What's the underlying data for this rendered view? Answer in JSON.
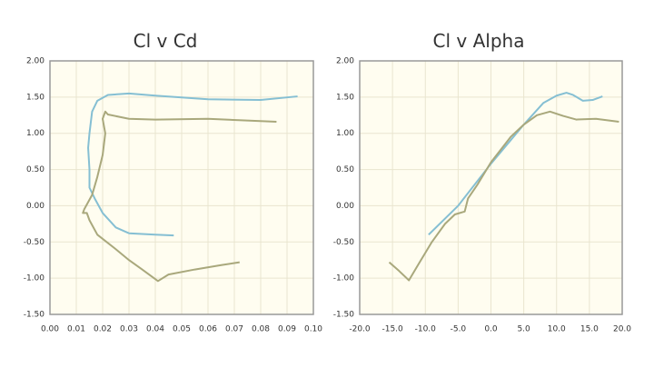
{
  "chart_data": [
    {
      "type": "line",
      "title": "Cl v Cd",
      "grid": true,
      "xlim": [
        0,
        0.1
      ],
      "ylim": [
        -1.5,
        2
      ],
      "xticks": [
        {
          "value": 0,
          "label": "0.00"
        },
        {
          "value": 0.01,
          "label": "0.01"
        },
        {
          "value": 0.02,
          "label": "0.02"
        },
        {
          "value": 0.03,
          "label": "0.03"
        },
        {
          "value": 0.04,
          "label": "0.04"
        },
        {
          "value": 0.05,
          "label": "0.05"
        },
        {
          "value": 0.06,
          "label": "0.06"
        },
        {
          "value": 0.07,
          "label": "0.07"
        },
        {
          "value": 0.08,
          "label": "0.08"
        },
        {
          "value": 0.09,
          "label": "0.09"
        },
        {
          "value": 0.1,
          "label": "0.10"
        }
      ],
      "yticks": [
        {
          "value": -1.5,
          "label": "-1.50"
        },
        {
          "value": -1,
          "label": "-1.00"
        },
        {
          "value": -0.5,
          "label": "-0.50"
        },
        {
          "value": 0,
          "label": "0.00"
        },
        {
          "value": 0.5,
          "label": "0.50"
        },
        {
          "value": 1,
          "label": "1.00"
        },
        {
          "value": 1.5,
          "label": "1.50"
        },
        {
          "value": 2,
          "label": "2.00"
        }
      ],
      "series": [
        {
          "color": "#85bfd3",
          "x": [
            0.094,
            0.08,
            0.06,
            0.04,
            0.03,
            0.022,
            0.018,
            0.016,
            0.015,
            0.0145,
            0.015,
            0.015,
            0.017,
            0.02,
            0.025,
            0.03,
            0.04,
            0.047
          ],
          "values": [
            1.51,
            1.46,
            1.47,
            1.52,
            1.55,
            1.53,
            1.45,
            1.3,
            1.0,
            0.8,
            0.5,
            0.25,
            0.1,
            -0.1,
            -0.3,
            -0.38,
            -0.4,
            -0.41
          ]
        },
        {
          "color": "#a9a87c",
          "x": [
            0.086,
            0.06,
            0.04,
            0.03,
            0.022,
            0.021,
            0.02,
            0.021,
            0.02,
            0.018,
            0.016,
            0.013,
            0.0125,
            0.014,
            0.015,
            0.018,
            0.025,
            0.03,
            0.035,
            0.041,
            0.045,
            0.055,
            0.065,
            0.072
          ],
          "values": [
            1.16,
            1.2,
            1.19,
            1.2,
            1.26,
            1.3,
            1.2,
            1.0,
            0.7,
            0.4,
            0.15,
            -0.05,
            -0.1,
            -0.1,
            -0.2,
            -0.4,
            -0.6,
            -0.75,
            -0.88,
            -1.04,
            -0.95,
            -0.88,
            -0.82,
            -0.78
          ]
        }
      ]
    },
    {
      "type": "line",
      "title": "Cl v Alpha",
      "grid": true,
      "xlim": [
        -20,
        20
      ],
      "ylim": [
        -1.5,
        2
      ],
      "xticks": [
        {
          "value": -20,
          "label": "-20.0"
        },
        {
          "value": -15,
          "label": "-15.0"
        },
        {
          "value": -10,
          "label": "-10.0"
        },
        {
          "value": -5,
          "label": "-5.0"
        },
        {
          "value": 0,
          "label": "0.0"
        },
        {
          "value": 5,
          "label": "5.0"
        },
        {
          "value": 10,
          "label": "10.0"
        },
        {
          "value": 15,
          "label": "15.0"
        },
        {
          "value": 20,
          "label": "20.0"
        }
      ],
      "yticks": [
        {
          "value": -1.5,
          "label": "-1.50"
        },
        {
          "value": -1,
          "label": "-1.00"
        },
        {
          "value": -0.5,
          "label": "-0.50"
        },
        {
          "value": 0,
          "label": "0.00"
        },
        {
          "value": 0.5,
          "label": "0.50"
        },
        {
          "value": 1,
          "label": "1.00"
        },
        {
          "value": 1.5,
          "label": "1.50"
        },
        {
          "value": 2,
          "label": "2.00"
        }
      ],
      "series": [
        {
          "color": "#85bfd3",
          "x": [
            -9.5,
            -5,
            0,
            5,
            8,
            10,
            11.5,
            12.5,
            14,
            15.5,
            17
          ],
          "values": [
            -0.4,
            0.0,
            0.58,
            1.12,
            1.42,
            1.52,
            1.56,
            1.53,
            1.45,
            1.46,
            1.51
          ]
        },
        {
          "color": "#a9a87c",
          "x": [
            -15.5,
            -14,
            -12.5,
            -11,
            -9,
            -7,
            -5.5,
            -4,
            -3.5,
            -2,
            0,
            3,
            5,
            7,
            9,
            11,
            13,
            16,
            19.5
          ],
          "values": [
            -0.78,
            -0.9,
            -1.03,
            -0.8,
            -0.5,
            -0.25,
            -0.12,
            -0.08,
            0.1,
            0.3,
            0.6,
            0.95,
            1.12,
            1.25,
            1.3,
            1.24,
            1.19,
            1.2,
            1.16
          ]
        }
      ]
    }
  ]
}
